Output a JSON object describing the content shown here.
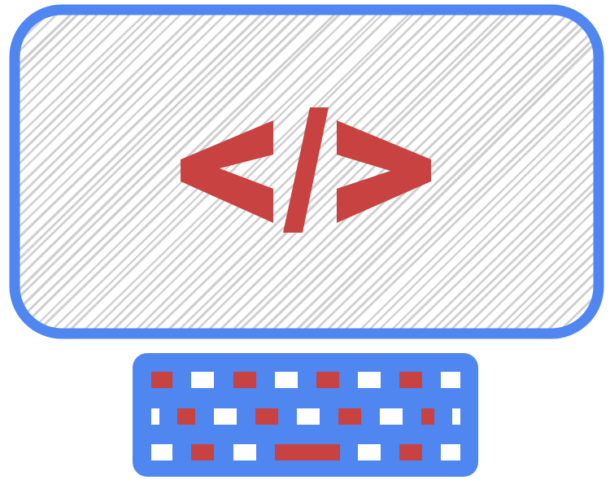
{
  "illustration": {
    "subject": "computer-with-code-icon",
    "icon": "code-brackets-icon",
    "code_glyph": "</>",
    "colors": {
      "frame": "#4f86f0",
      "code": "#c84242",
      "hatch": "#cfcfcf",
      "key_white": "#ffffff",
      "key_red": "#c84242"
    }
  }
}
